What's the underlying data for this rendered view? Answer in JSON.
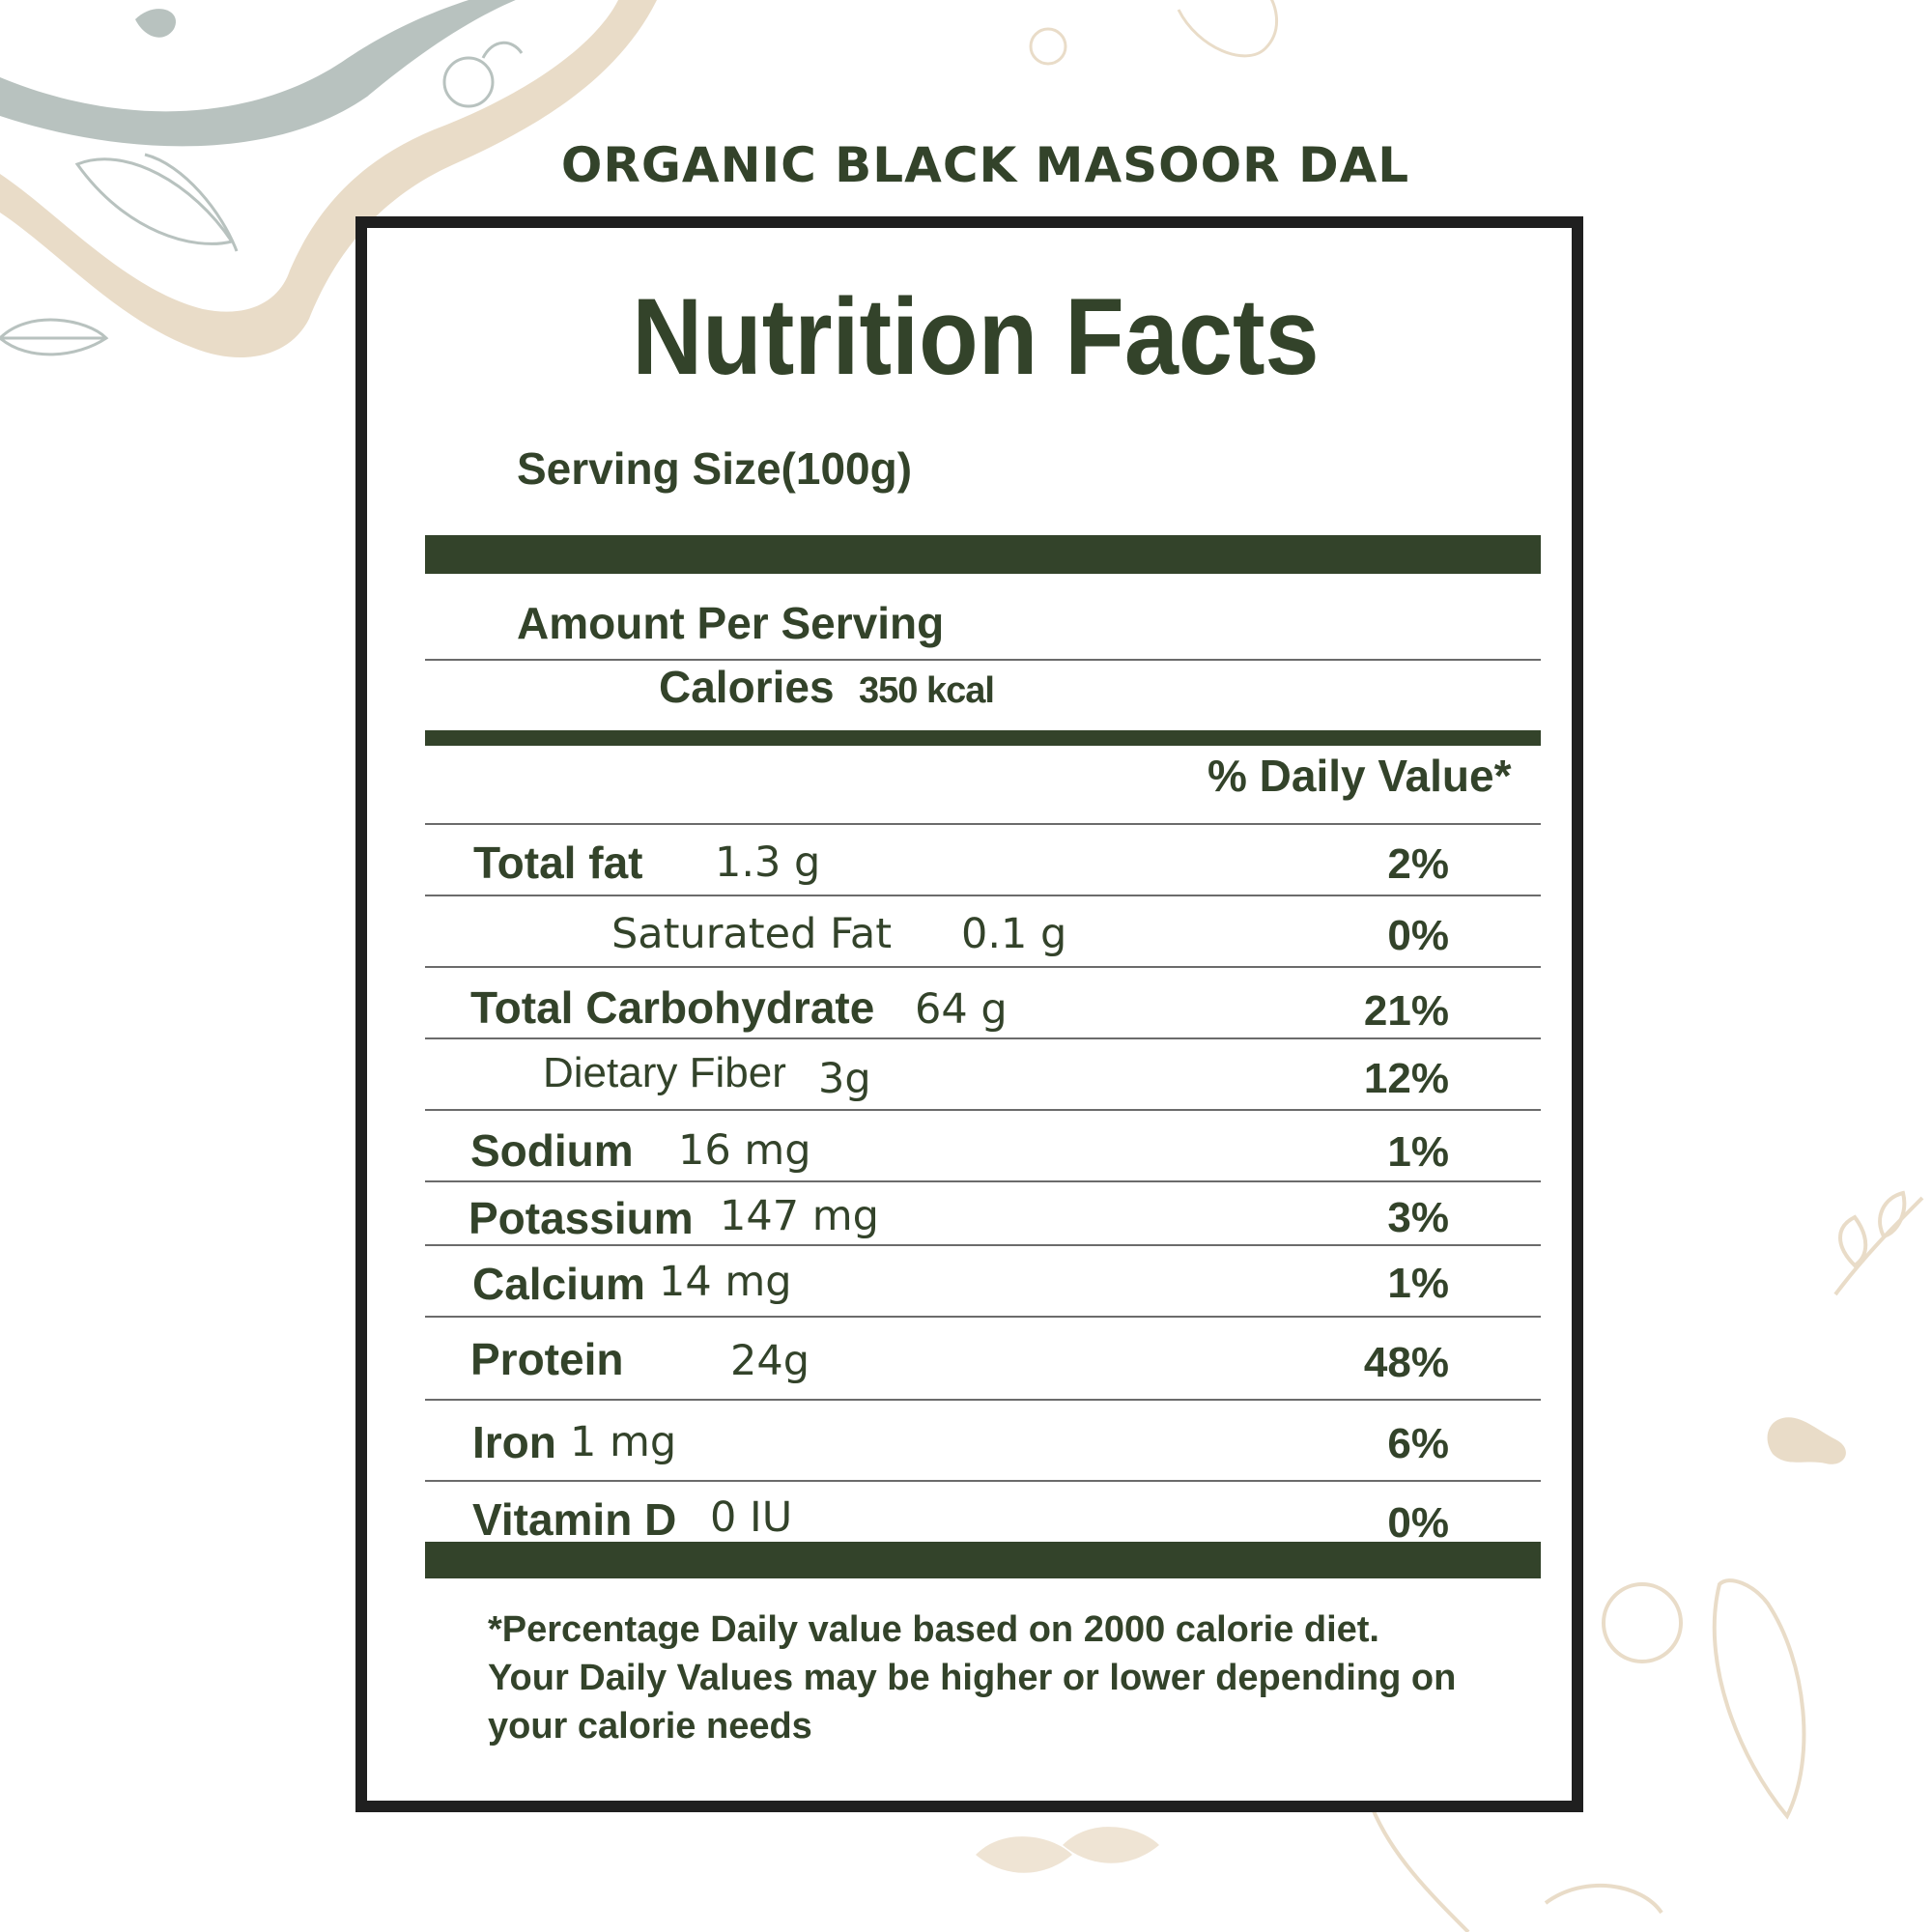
{
  "product": {
    "title": "ORGANIC BLACK MASOOR DAL"
  },
  "label": {
    "heading": "Nutrition Facts",
    "serving_size": "Serving Size(100g)",
    "amount_per_serving": "Amount Per Serving",
    "calories_label": "Calories",
    "calories_value": "350 kcal",
    "daily_value_header": "% Daily Value*",
    "nutrients": [
      {
        "name": "Total fat",
        "amount": "1.3 g",
        "dv": "2%"
      },
      {
        "name": "Saturated Fat",
        "amount": "0.1 g",
        "dv": "0%"
      },
      {
        "name": "Total Carbohydrate",
        "amount": "64 g",
        "dv": "21%"
      },
      {
        "name": "Dietary Fiber",
        "amount": "3g",
        "dv": "12%"
      },
      {
        "name": "Sodium",
        "amount": "16 mg",
        "dv": "1%"
      },
      {
        "name": "Potassium",
        "amount": "147 mg",
        "dv": "3%"
      },
      {
        "name": "Calcium",
        "amount": "14 mg",
        "dv": "1%"
      },
      {
        "name": "Protein",
        "amount": "24g",
        "dv": "48%"
      },
      {
        "name": "Iron",
        "amount": "1 mg",
        "dv": "6%"
      },
      {
        "name": "Vitamin D",
        "amount": "0 IU",
        "dv": "0%"
      }
    ],
    "footnote": [
      "*Percentage Daily value based on 2000 calorie diet.",
      "Your Daily Values may be higher or lower depending on",
      "your calorie needs"
    ]
  },
  "colors": {
    "text": "#33432a",
    "border": "#1f1f1f",
    "decor_gray": "#b8c2bf",
    "decor_beige": "#e9dcc8"
  }
}
